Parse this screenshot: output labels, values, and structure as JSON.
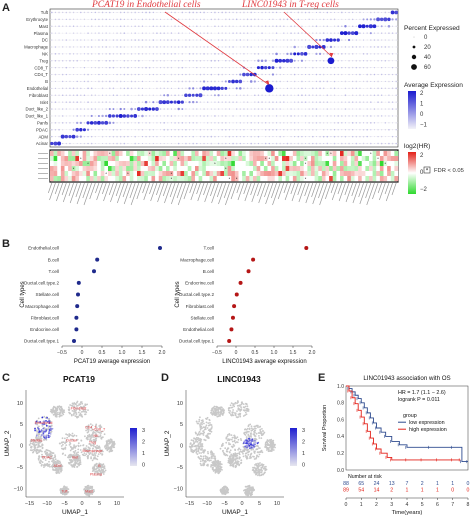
{
  "panels": {
    "A": "A",
    "B": "B",
    "C": "C",
    "D": "D",
    "E": "E"
  },
  "annotations": {
    "pcat19_gene": "PCAT19",
    "pcat19_rest": "in Endothelial cells",
    "linc_gene": "LINC01943",
    "linc_rest": "in T-reg cells"
  },
  "colors": {
    "dot_high": "#1b1bcf",
    "dot_low": "#d9d6ea",
    "hr_pos": "#e32119",
    "hr_neg": "#2fd92f",
    "low_expression": "#2e4b8f",
    "high_expression": "#e32119",
    "umap_cells": "#c8c8c8",
    "umap_label": "#e0393e"
  },
  "chart_data": [
    {
      "type": "scatter",
      "id": "A-dotplot",
      "cell_types": [
        "Tuft",
        "Erythrocyte",
        "Mast",
        "Plasma",
        "DC",
        "Macrophage",
        "NK",
        "Treg",
        "CD8_T",
        "CD4_T",
        "B",
        "Endothelial",
        "Fibroblast",
        "Islet",
        "Duct_like_2",
        "Duct_like_1",
        "Panfs",
        "PDAC",
        "ADM",
        "Acinar"
      ],
      "gene_count": 96,
      "hr_track_rows": 6,
      "legend": {
        "size_title": "Percent Expressed",
        "size_values": [
          "0",
          "20",
          "40",
          "60"
        ],
        "color_title": "Average Expression",
        "color_ticks": [
          "2",
          "1",
          "0",
          "−1"
        ],
        "hr_title": "log2(HR)",
        "hr_ticks": [
          "2",
          "0",
          "−2"
        ],
        "fdr_mark": "*",
        "fdr_label": "FDR < 0.05"
      }
    },
    {
      "type": "scatter",
      "id": "B-left",
      "categories": [
        "Endothelial.cell",
        "B.cell",
        "T.cell",
        "Ductal.cell.type.2",
        "Stellate.cell",
        "Macrophage.cell",
        "Fibroblast.cell",
        "Endocrine.cell",
        "Ductal.cell.type.1"
      ],
      "values": [
        1.95,
        0.38,
        0.3,
        -0.08,
        -0.1,
        -0.12,
        -0.14,
        -0.14,
        -0.2
      ],
      "xlabel": "PCAT19 average expression",
      "ylabel": "Cell types",
      "xticks": [
        "−0.5",
        "0",
        "0.5",
        "1.0",
        "1.5",
        "2.0"
      ],
      "xlim": [
        -0.5,
        2.0
      ],
      "color": "#1f2a8c"
    },
    {
      "type": "scatter",
      "id": "B-right",
      "categories": [
        "T.cell",
        "Macrophage.cell",
        "B.cell",
        "Endocrine.cell",
        "Ductal.cell.type.2",
        "Fibroblast.cell",
        "Stellate.cell",
        "Endothelial.cell",
        "Ductal.cell.type.1"
      ],
      "values": [
        1.85,
        0.45,
        0.33,
        0.12,
        0.02,
        -0.05,
        -0.08,
        -0.12,
        -0.18
      ],
      "xlabel": "LINC01943 average expression",
      "ylabel": "Cell types",
      "xticks": [
        "−0.5",
        "0",
        "0.5",
        "1.0",
        "1.5",
        "2.0"
      ],
      "xlim": [
        -0.5,
        2.0
      ],
      "color": "#b51616"
    },
    {
      "type": "scatter",
      "id": "C-umap",
      "title": "PCAT19",
      "xlabel": "UMAP_1",
      "ylabel": "UMAP_2",
      "xticks": [
        "−15",
        "−10",
        "−5",
        "0",
        "5",
        "10"
      ],
      "yticks": [
        "10",
        "5",
        "0",
        "−5",
        "−10"
      ],
      "xlim": [
        -16,
        12
      ],
      "ylim": [
        -12,
        13
      ],
      "colorbar_ticks": [
        "3",
        "2",
        "1",
        "0"
      ],
      "clusters": [
        {
          "label": "Fibroblast",
          "x": -1,
          "y": 8.5
        },
        {
          "label": "Endothelial",
          "x": -11,
          "y": 5
        },
        {
          "label": "Stellate",
          "x": -13,
          "y": 1
        },
        {
          "label": "CD4_T",
          "x": 2.5,
          "y": 4
        },
        {
          "label": "CD8_T",
          "x": 5,
          "y": 3.5
        },
        {
          "label": "NK",
          "x": 4,
          "y": 2
        },
        {
          "label": "Ductal",
          "x": -3,
          "y": 1
        },
        {
          "label": "Treg",
          "x": 3,
          "y": 0.5
        },
        {
          "label": "Macrophage",
          "x": 3,
          "y": -1.5
        },
        {
          "label": "Islet",
          "x": -2,
          "y": -3
        },
        {
          "label": "PDAC",
          "x": -10,
          "y": -3
        },
        {
          "label": "ADM",
          "x": -7,
          "y": -5
        },
        {
          "label": "B",
          "x": 5,
          "y": -5
        },
        {
          "label": "Plasma",
          "x": 4,
          "y": -7
        },
        {
          "label": "Tuft",
          "x": -5,
          "y": -11
        },
        {
          "label": "Mast",
          "x": 2,
          "y": -11
        }
      ]
    },
    {
      "type": "scatter",
      "id": "D-umap",
      "title": "LINC01943",
      "xlabel": "UMAP_1",
      "ylabel": "UMAP_2",
      "xticks": [
        "−15",
        "−10",
        "−5",
        "0",
        "5",
        "10"
      ],
      "yticks": [
        "10",
        "5",
        "0",
        "−5",
        "−10"
      ],
      "xlim": [
        -16,
        12
      ],
      "ylim": [
        -12,
        13
      ],
      "colorbar_ticks": [
        "3",
        "2",
        "1",
        "0"
      ]
    },
    {
      "type": "line",
      "id": "E-km",
      "title": "LINC01943 association with OS",
      "xlabel": "Time(years)",
      "ylabel": "Survival Proportion",
      "xticks": [
        "0",
        "1",
        "2",
        "3",
        "4",
        "5",
        "6",
        "7",
        "8"
      ],
      "yticks": [
        "1.0",
        "0.8",
        "0.6",
        "0.4",
        "0.2",
        "0.0"
      ],
      "xlim": [
        0,
        8
      ],
      "ylim": [
        0,
        1
      ],
      "stats": [
        "HR = 1.7 (1.1 − 2.6)",
        "logrank P = 0.011"
      ],
      "legend_title": "group",
      "series": [
        {
          "name": "low expression",
          "x": [
            0,
            0.2,
            0.4,
            0.6,
            0.8,
            1.0,
            1.2,
            1.4,
            1.6,
            1.8,
            2.0,
            2.3,
            2.6,
            3.0,
            3.5,
            4.0,
            5.5,
            7.0,
            7.6,
            8.0
          ],
          "y": [
            1.0,
            0.97,
            0.93,
            0.89,
            0.85,
            0.8,
            0.74,
            0.68,
            0.62,
            0.56,
            0.5,
            0.45,
            0.4,
            0.34,
            0.3,
            0.27,
            0.27,
            0.27,
            0.1,
            0.1
          ]
        },
        {
          "name": "high expression",
          "x": [
            0,
            0.2,
            0.4,
            0.6,
            0.8,
            1.0,
            1.2,
            1.4,
            1.6,
            1.8,
            2.0,
            2.3,
            2.7,
            3.0,
            4.0,
            5.0,
            6.0,
            7.0,
            7.5
          ],
          "y": [
            1.0,
            0.94,
            0.86,
            0.79,
            0.71,
            0.63,
            0.55,
            0.46,
            0.38,
            0.31,
            0.25,
            0.2,
            0.15,
            0.12,
            0.12,
            0.12,
            0.12,
            0.12,
            0.12
          ]
        }
      ],
      "risk_title": "Number at risk",
      "risk_table": [
        {
          "name": "low expression",
          "values": [
            "88",
            "65",
            "24",
            "13",
            "7",
            "2",
            "1",
            "1",
            "0"
          ]
        },
        {
          "name": "high expression",
          "values": [
            "89",
            "54",
            "14",
            "2",
            "1",
            "1",
            "1",
            "0",
            "0"
          ]
        }
      ]
    }
  ]
}
